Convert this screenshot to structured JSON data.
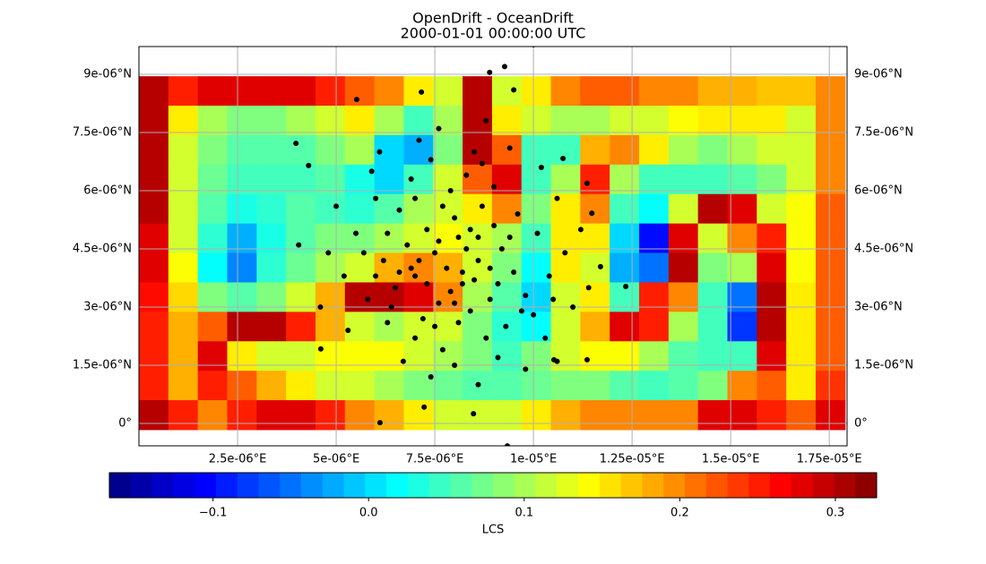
{
  "chart_data": {
    "type": "heatmap",
    "title": "OpenDrift - OceanDrift",
    "subtitle": "2000-01-01 00:00:00 UTC",
    "xlim": [
      0,
      1.795e-05
    ],
    "ylim": [
      -5.77e-07,
      9.715e-06
    ],
    "xticks": [
      {
        "value": 2.5e-06,
        "label": "2.5e-06°E"
      },
      {
        "value": 5e-06,
        "label": "5e-06°E"
      },
      {
        "value": 7.5e-06,
        "label": "7.5e-06°E"
      },
      {
        "value": 1e-05,
        "label": "1e-05°E"
      },
      {
        "value": 1.25e-05,
        "label": "1.25e-05°E"
      },
      {
        "value": 1.5e-05,
        "label": "1.5e-05°E"
      },
      {
        "value": 1.75e-05,
        "label": "1.75e-05°E"
      }
    ],
    "yticks": [
      {
        "value": 0,
        "label": "0°"
      },
      {
        "value": 1.5e-06,
        "label": "1.5e-06°N"
      },
      {
        "value": 3e-06,
        "label": "3e-06°N"
      },
      {
        "value": 4.5e-06,
        "label": "4.5e-06°N"
      },
      {
        "value": 6e-06,
        "label": "6e-06°N"
      },
      {
        "value": 7.5e-06,
        "label": "7.5e-06°N"
      },
      {
        "value": 9e-06,
        "label": "9e-06°N"
      }
    ],
    "grid": true,
    "colormap": "jet",
    "extent": [
      0,
      1.79e-05,
      -1.6e-07,
      8.95e-06
    ],
    "z": [
      [
        0.3,
        0.25,
        0.28,
        0.28,
        0.28,
        0.28,
        0.25,
        0.22,
        0.2,
        0.15,
        0.12,
        0.3,
        0.12,
        0.15,
        0.2,
        0.22,
        0.22,
        0.2,
        0.2,
        0.18,
        0.18,
        0.17,
        0.17,
        0.2
      ],
      [
        0.3,
        0.15,
        0.1,
        0.08,
        0.08,
        0.1,
        0.12,
        0.15,
        0.1,
        0.05,
        0.1,
        0.3,
        0.15,
        0.12,
        0.1,
        0.1,
        0.12,
        0.12,
        0.14,
        0.15,
        0.15,
        0.15,
        0.12,
        0.2
      ],
      [
        0.3,
        0.12,
        0.08,
        0.06,
        0.06,
        0.06,
        0.08,
        0.1,
        0.0,
        -0.02,
        0.08,
        0.3,
        0.22,
        0.05,
        0.05,
        0.18,
        0.2,
        0.15,
        0.1,
        0.08,
        0.1,
        0.12,
        0.12,
        0.2
      ],
      [
        0.3,
        0.12,
        0.07,
        0.05,
        0.05,
        0.05,
        0.06,
        0.03,
        0.0,
        0.05,
        0.12,
        0.22,
        0.28,
        0.05,
        0.1,
        0.25,
        0.1,
        0.05,
        0.05,
        0.05,
        0.06,
        0.08,
        0.12,
        0.2
      ],
      [
        0.3,
        0.12,
        0.06,
        0.03,
        0.04,
        0.06,
        0.05,
        0.04,
        0.06,
        0.1,
        0.12,
        0.15,
        0.2,
        0.08,
        0.15,
        0.2,
        0.05,
        0.02,
        0.12,
        0.3,
        0.28,
        0.12,
        0.14,
        0.22
      ],
      [
        0.28,
        0.12,
        0.04,
        -0.02,
        0.03,
        0.06,
        0.08,
        0.08,
        0.1,
        0.12,
        0.14,
        0.12,
        0.1,
        0.05,
        0.15,
        0.15,
        0.0,
        -0.1,
        0.28,
        0.12,
        0.2,
        0.25,
        0.14,
        0.22
      ],
      [
        0.28,
        0.14,
        0.02,
        -0.04,
        0.04,
        0.07,
        0.1,
        0.12,
        0.18,
        0.2,
        0.18,
        0.12,
        0.08,
        0.02,
        0.15,
        0.12,
        -0.02,
        -0.05,
        0.3,
        0.08,
        0.1,
        0.28,
        0.14,
        0.22
      ],
      [
        0.26,
        0.16,
        0.08,
        0.06,
        0.08,
        0.12,
        0.18,
        0.3,
        0.3,
        0.28,
        0.2,
        0.1,
        0.06,
        0.0,
        0.12,
        0.15,
        0.05,
        0.25,
        0.2,
        0.05,
        -0.05,
        0.3,
        0.15,
        0.22
      ],
      [
        0.25,
        0.18,
        0.22,
        0.3,
        0.3,
        0.25,
        0.18,
        0.12,
        0.1,
        0.12,
        0.12,
        0.08,
        0.04,
        0.02,
        0.12,
        0.18,
        0.28,
        0.25,
        0.1,
        0.05,
        -0.08,
        0.3,
        0.15,
        0.22
      ],
      [
        0.25,
        0.18,
        0.28,
        0.15,
        0.12,
        0.12,
        0.14,
        0.14,
        0.14,
        0.12,
        0.1,
        0.08,
        0.05,
        0.08,
        0.12,
        0.14,
        0.14,
        0.1,
        0.06,
        0.05,
        0.05,
        0.28,
        0.15,
        0.22
      ],
      [
        0.25,
        0.18,
        0.25,
        0.22,
        0.18,
        0.15,
        0.12,
        0.12,
        0.1,
        0.08,
        0.07,
        0.06,
        0.06,
        0.07,
        0.08,
        0.08,
        0.06,
        0.05,
        0.06,
        0.08,
        0.2,
        0.22,
        0.15,
        0.24
      ],
      [
        0.3,
        0.25,
        0.2,
        0.25,
        0.28,
        0.28,
        0.25,
        0.2,
        0.18,
        0.15,
        0.12,
        0.12,
        0.12,
        0.15,
        0.18,
        0.2,
        0.2,
        0.2,
        0.2,
        0.28,
        0.28,
        0.25,
        0.22,
        0.28
      ]
    ],
    "clim": [
      -0.1666,
      0.3265
    ],
    "cticks": [
      {
        "value": -0.1,
        "label": "−0.1"
      },
      {
        "value": 0,
        "label": "0.0"
      },
      0.1,
      0.2,
      0.3
    ],
    "colorbar_label": "LCS",
    "overlay": {
      "type": "scatter",
      "color": "#000000",
      "x": [
        1e-05,
        9.27e-06,
        8.89e-06,
        9.5e-06,
        7.16e-06,
        5.52e-06,
        3.98e-06,
        4.3e-06,
        4.05e-06,
        1.234e-05,
        4.61e-06,
        6.11e-06,
        7.23e-06,
        8.48e-06,
        9.34e-06,
        1.052e-05,
        1.136e-05,
        1.17e-05,
        1.148e-05,
        1.136e-05,
        1.075e-05,
        7.8e-06,
        8.2e-06,
        7.5e-06,
        8.6e-06,
        7e-06,
        8.9e-06,
        7.3e-06,
        8e-06,
        6.8e-06,
        9.2e-06,
        8.4e-06,
        7.6e-06,
        6.5e-06,
        9.5e-06,
        8.1e-06,
        7.2e-06,
        8.7e-06,
        6.2e-06,
        9.8e-06,
        7.9e-06,
        6.6e-06,
        8.3e-06,
        7.4e-06,
        9e-06,
        6e-06,
        1.01e-05,
        1.04e-05,
        5.8e-06,
        6.3e-06,
        8.8e-06,
        7.7e-06,
        9.3e-06,
        1e-05,
        5.5e-06,
        6.9e-06,
        8.5e-06,
        7.1e-06,
        9.6e-06,
        1.06e-05,
        5.9e-06,
        6.4e-06,
        7e-06,
        8e-06,
        9.1e-06,
        1.03e-05,
        1.1e-05,
        1.08e-05,
        5.2e-06,
        4.8e-06,
        5e-06,
        6.1e-06,
        7.6e-06,
        8.8e-06,
        9.4e-06,
        1.02e-05,
        1.12e-05,
        1.14e-05,
        4.6e-06,
        5.3e-06,
        6.7e-06,
        7.4e-06,
        8.6e-06,
        9.8e-06,
        1.06e-05,
        8.2e-06,
        7.9e-06,
        8.5e-06,
        7.6e-06,
        8.9e-06,
        7.1e-06,
        8.3e-06,
        8e-06,
        7.3e-06,
        9.1e-06,
        6.9e-06,
        8.6e-06,
        7.7e-06,
        8.4e-06,
        9.4e-06,
        6.6e-06,
        9.7e-06,
        6e-06,
        8.1e-06,
        7.5e-06,
        9e-06,
        6.3e-06,
        1.05e-05,
        5.7e-06,
        8.7e-06,
        7e-06
      ],
      "y": [
        9.76e-06,
        9.2e-06,
        9.05e-06,
        8.6e-06,
        8.54e-06,
        8.35e-06,
        7.22e-06,
        6.65e-06,
        4.6e-06,
        3.53e-06,
        1.92e-06,
        2e-08,
        4.2e-07,
        2.5e-07,
        -5.8e-07,
        1.64e-06,
        1.64e-06,
        4.04e-06,
        5.42e-06,
        6.19e-06,
        6.83e-06,
        4e-06,
        3.6e-06,
        4.4e-06,
        4.2e-06,
        3.8e-06,
        3.2e-06,
        5e-06,
        5.3e-06,
        4.6e-06,
        4.5e-06,
        2.9e-06,
        3.1e-06,
        3.5e-06,
        3.9e-06,
        4.8e-06,
        2.7e-06,
        5.6e-06,
        4.2e-06,
        3.3e-06,
        6e-06,
        5.5e-06,
        6.4e-06,
        6.8e-06,
        6.1e-06,
        5.8e-06,
        4.9e-06,
        3.8e-06,
        3.2e-06,
        2.6e-06,
        2.2e-06,
        1.9e-06,
        2.5e-06,
        2.8e-06,
        4.9e-06,
        6.3e-06,
        7e-06,
        7.3e-06,
        5.4e-06,
        5.8e-06,
        6.5e-06,
        3e-06,
        2.2e-06,
        1.5e-06,
        1.7e-06,
        2.2e-06,
        3e-06,
        4.4e-06,
        3.8e-06,
        4.4e-06,
        5.6e-06,
        7e-06,
        7.6e-06,
        7.8e-06,
        7.1e-06,
        6.6e-06,
        5e-06,
        3.5e-06,
        3e-06,
        2.4e-06,
        1.6e-06,
        1.2e-06,
        1e-06,
        1.4e-06,
        1.6e-06,
        3.9e-06,
        3.4e-06,
        3.7e-06,
        4.7e-06,
        4e-06,
        4.2e-06,
        4.5e-06,
        3.1e-06,
        3.6e-06,
        3.6e-06,
        4e-06,
        4.8e-06,
        5.6e-06,
        5e-06,
        4.8e-06,
        3.9e-06,
        2.9e-06,
        3.8e-06,
        2.6e-06,
        2.5e-06,
        5.1e-06,
        4.9e-06,
        3.2e-06,
        4.4e-06,
        6.7e-06,
        5.8e-06
      ]
    }
  }
}
